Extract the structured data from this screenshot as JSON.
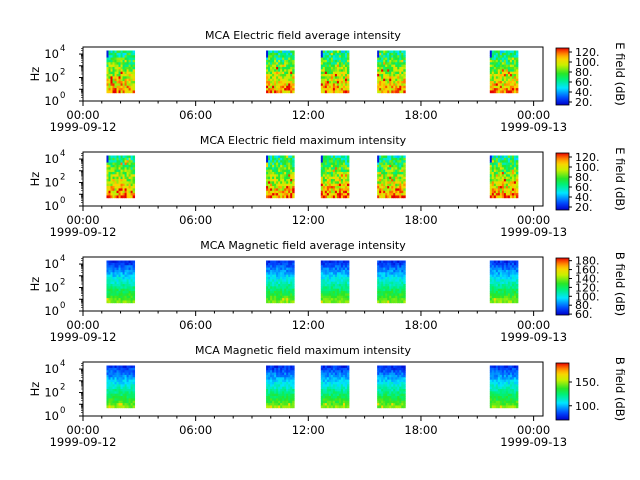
{
  "chart_data": [
    {
      "type": "heatmap",
      "title": "MCA  Electric field average intensity",
      "ylabel": "Hz",
      "colorbar_label": "E field (dB)",
      "colorbar_ticks": [
        "20.",
        "40.",
        "60.",
        "80.",
        "100.",
        "120."
      ],
      "colorbar_range": [
        14,
        128
      ],
      "colormap": "rainbow: blue-cyan-green-yellow-red",
      "x_ticks": [
        "00:00",
        "06:00",
        "12:00",
        "18:00",
        "00:00"
      ],
      "x_dates": [
        "1999-09-12",
        "1999-09-13"
      ],
      "xlim": [
        "1999-09-12 00:00",
        "1999-09-13 00:30"
      ],
      "y_scale": "log",
      "y_ticks": [
        {
          "base": "10",
          "exp": "0"
        },
        {
          "base": "10",
          "exp": "2"
        },
        {
          "base": "10",
          "exp": "4"
        }
      ],
      "data_segments_utc": [
        [
          "01:15",
          "02:45"
        ],
        [
          "09:45",
          "11:15"
        ],
        [
          "12:40",
          "14:10"
        ],
        [
          "15:40",
          "17:10"
        ],
        [
          "21:40",
          "23:10"
        ]
      ],
      "freq_range_hz": [
        5,
        20000
      ],
      "pattern": "electric"
    },
    {
      "type": "heatmap",
      "title": "MCA  Electric field maximum intensity",
      "ylabel": "Hz",
      "colorbar_label": "E field (dB)",
      "colorbar_ticks": [
        "20.",
        "40.",
        "60.",
        "80.",
        "100.",
        "120."
      ],
      "colorbar_range": [
        14,
        128
      ],
      "colormap": "rainbow: blue-cyan-green-yellow-red",
      "x_ticks": [
        "00:00",
        "06:00",
        "12:00",
        "18:00",
        "00:00"
      ],
      "x_dates": [
        "1999-09-12",
        "1999-09-13"
      ],
      "xlim": [
        "1999-09-12 00:00",
        "1999-09-13 00:30"
      ],
      "y_scale": "log",
      "y_ticks": [
        {
          "base": "10",
          "exp": "0"
        },
        {
          "base": "10",
          "exp": "2"
        },
        {
          "base": "10",
          "exp": "4"
        }
      ],
      "data_segments_utc": [
        [
          "01:15",
          "02:45"
        ],
        [
          "09:45",
          "11:15"
        ],
        [
          "12:40",
          "14:10"
        ],
        [
          "15:40",
          "17:10"
        ],
        [
          "21:40",
          "23:10"
        ]
      ],
      "freq_range_hz": [
        5,
        20000
      ],
      "pattern": "electric"
    },
    {
      "type": "heatmap",
      "title": "MCA  Magnetic field average intensity",
      "ylabel": "Hz",
      "colorbar_label": "B field (dB)",
      "colorbar_ticks": [
        "60.",
        "80.",
        "100.",
        "120.",
        "140.",
        "160.",
        "180."
      ],
      "colorbar_range": [
        58,
        186
      ],
      "colormap": "rainbow: blue-cyan-green-yellow-red",
      "x_ticks": [
        "00:00",
        "06:00",
        "12:00",
        "18:00",
        "00:00"
      ],
      "x_dates": [
        "1999-09-12",
        "1999-09-13"
      ],
      "xlim": [
        "1999-09-12 00:00",
        "1999-09-13 00:30"
      ],
      "y_scale": "log",
      "y_ticks": [
        {
          "base": "10",
          "exp": "0"
        },
        {
          "base": "10",
          "exp": "2"
        },
        {
          "base": "10",
          "exp": "4"
        }
      ],
      "data_segments_utc": [
        [
          "01:15",
          "02:45"
        ],
        [
          "09:45",
          "11:15"
        ],
        [
          "12:40",
          "14:10"
        ],
        [
          "15:40",
          "17:10"
        ],
        [
          "21:40",
          "23:10"
        ]
      ],
      "freq_range_hz": [
        5,
        20000
      ],
      "pattern": "magnetic"
    },
    {
      "type": "heatmap",
      "title": "MCA  Magnetic field maximum intensity",
      "ylabel": "Hz",
      "colorbar_label": "B field (dB)",
      "colorbar_ticks": [
        "100.",
        "150."
      ],
      "colorbar_range": [
        70,
        190
      ],
      "colormap": "rainbow: blue-cyan-green-yellow-red",
      "x_ticks": [
        "00:00",
        "06:00",
        "12:00",
        "18:00",
        "00:00"
      ],
      "x_dates": [
        "1999-09-12",
        "1999-09-13"
      ],
      "xlim": [
        "1999-09-12 00:00",
        "1999-09-13 00:30"
      ],
      "y_scale": "log",
      "y_ticks": [
        {
          "base": "10",
          "exp": "0"
        },
        {
          "base": "10",
          "exp": "2"
        },
        {
          "base": "10",
          "exp": "4"
        }
      ],
      "data_segments_utc": [
        [
          "01:15",
          "02:45"
        ],
        [
          "09:45",
          "11:15"
        ],
        [
          "12:40",
          "14:10"
        ],
        [
          "15:40",
          "17:10"
        ],
        [
          "21:40",
          "23:10"
        ]
      ],
      "freq_range_hz": [
        5,
        20000
      ],
      "pattern": "magnetic"
    }
  ]
}
